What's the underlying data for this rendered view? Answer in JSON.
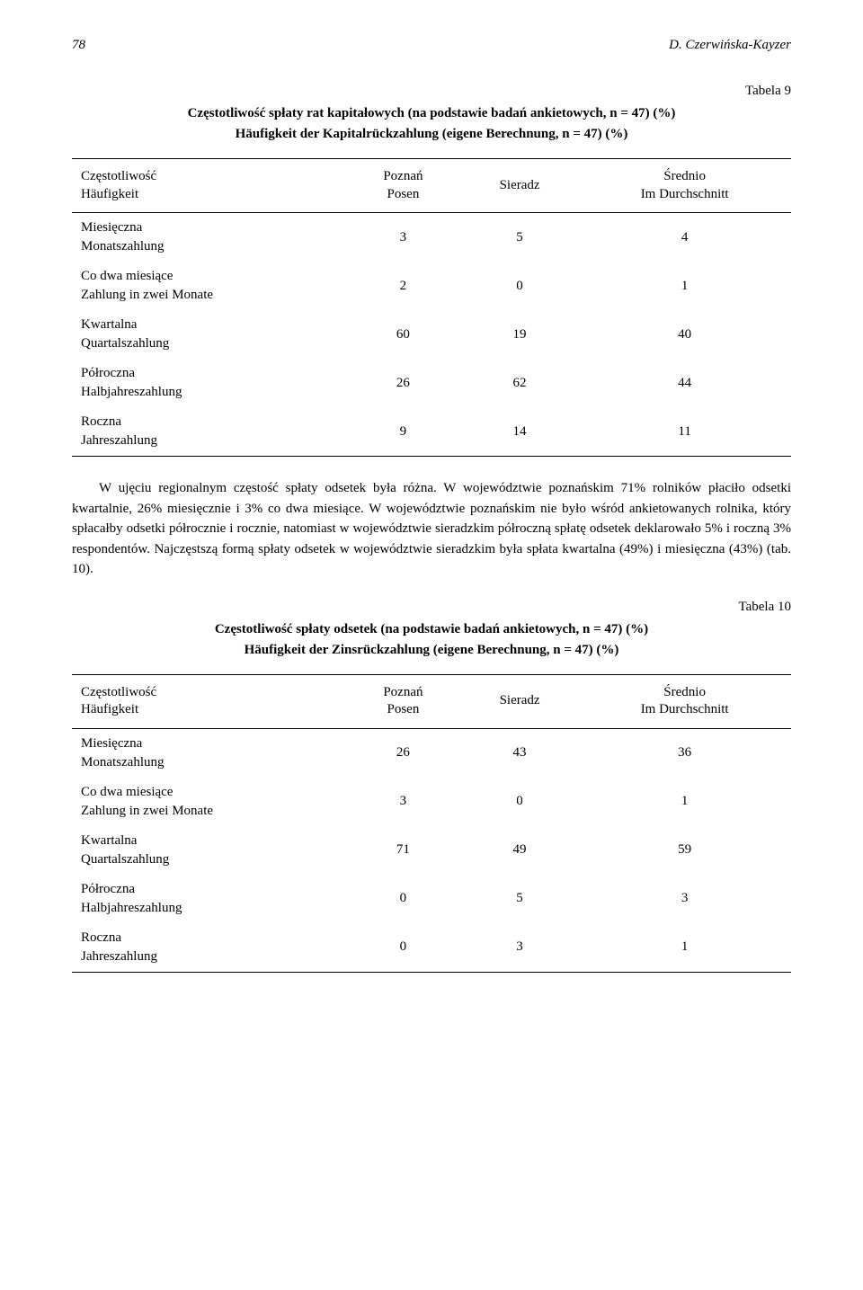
{
  "page": {
    "number": "78",
    "author": "D. Czerwińska-Kayzer"
  },
  "table9": {
    "label": "Tabela 9",
    "title": "Częstotliwość spłaty rat kapitałowych (na podstawie badań ankietowych, n = 47) (%)",
    "subtitle": "Häufigkeit der Kapitalrückzahlung (eigene Berechnung, n = 47) (%)",
    "columns": {
      "c1_a": "Częstotliwość",
      "c1_b": "Häufigkeit",
      "c2_a": "Poznań",
      "c2_b": "Posen",
      "c3": "Sieradz",
      "c4_a": "Średnio",
      "c4_b": "Im Durchschnitt"
    },
    "rows": [
      {
        "label_a": "Miesięczna",
        "label_b": "Monatszahlung",
        "v1": "3",
        "v2": "5",
        "v3": "4"
      },
      {
        "label_a": "Co dwa miesiące",
        "label_b": "Zahlung in zwei Monate",
        "v1": "2",
        "v2": "0",
        "v3": "1"
      },
      {
        "label_a": "Kwartalna",
        "label_b": "Quartalszahlung",
        "v1": "60",
        "v2": "19",
        "v3": "40"
      },
      {
        "label_a": "Półroczna",
        "label_b": "Halbjahreszahlung",
        "v1": "26",
        "v2": "62",
        "v3": "44"
      },
      {
        "label_a": "Roczna",
        "label_b": "Jahreszahlung",
        "v1": "9",
        "v2": "14",
        "v3": "11"
      }
    ]
  },
  "paragraph": "W ujęciu regionalnym częstość spłaty odsetek była różna. W województwie poznańskim 71% rolników płaciło odsetki kwartalnie, 26% miesięcznie i 3% co dwa miesiące. W województwie poznańskim nie było wśród ankietowanych rolnika, który spłacałby odsetki półrocznie i rocznie, natomiast w województwie sieradzkim półroczną spłatę odsetek deklarowało 5% i roczną 3% respondentów. Najczęstszą formą spłaty odsetek w województwie sieradzkim była spłata kwartalna (49%) i miesięczna (43%) (tab. 10).",
  "table10": {
    "label": "Tabela 10",
    "title": "Częstotliwość spłaty odsetek (na podstawie badań ankietowych, n = 47) (%)",
    "subtitle": "Häufigkeit der Zinsrückzahlung (eigene Berechnung, n = 47) (%)",
    "columns": {
      "c1_a": "Częstotliwość",
      "c1_b": "Häufigkeit",
      "c2_a": "Poznań",
      "c2_b": "Posen",
      "c3": "Sieradz",
      "c4_a": "Średnio",
      "c4_b": "Im Durchschnitt"
    },
    "rows": [
      {
        "label_a": "Miesięczna",
        "label_b": "Monatszahlung",
        "v1": "26",
        "v2": "43",
        "v3": "36"
      },
      {
        "label_a": "Co dwa miesiące",
        "label_b": "Zahlung in zwei Monate",
        "v1": "3",
        "v2": "0",
        "v3": "1"
      },
      {
        "label_a": "Kwartalna",
        "label_b": "Quartalszahlung",
        "v1": "71",
        "v2": "49",
        "v3": "59"
      },
      {
        "label_a": "Półroczna",
        "label_b": "Halbjahreszahlung",
        "v1": "0",
        "v2": "5",
        "v3": "3"
      },
      {
        "label_a": "Roczna",
        "label_b": "Jahreszahlung",
        "v1": "0",
        "v2": "3",
        "v3": "1"
      }
    ]
  }
}
